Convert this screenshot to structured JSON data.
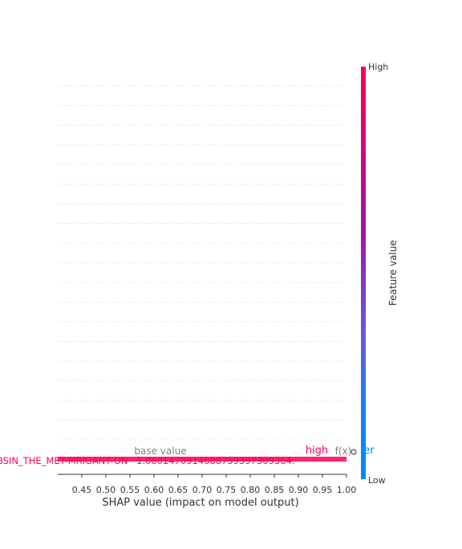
{
  "chart_data": {
    "type": "scatter",
    "title": "",
    "xlabel": "SHAP value (impact on model output)",
    "ylabel": "",
    "xlim": [
      0.4,
      1.0
    ],
    "x_ticks": [
      "0.45",
      "0.50",
      "0.55",
      "0.60",
      "0.65",
      "0.70",
      "0.75",
      "0.80",
      "0.85",
      "0.90",
      "0.95",
      "1.00"
    ],
    "x_tick_values": [
      0.45,
      0.5,
      0.55,
      0.6,
      0.65,
      0.7,
      0.75,
      0.8,
      0.85,
      0.9,
      0.95,
      1.0
    ],
    "row_count": 20,
    "grid": "dotted horizontal row guides",
    "colorbar": {
      "label": "Feature value",
      "high_label": "High",
      "low_label": "Low",
      "colors": [
        "#ff0052",
        "#a80fa4",
        "#6a5ad6",
        "#008bfb"
      ]
    },
    "annotations": {
      "base_value": "base value",
      "fx": "f(x)",
      "higher": "high",
      "lower": "er",
      "value_text": "1.0601470914088759397309364.",
      "feature_text": "BSIN_THE_MET-MRIGANT-ON"
    },
    "colors": {
      "positive": "#ff0052",
      "negative": "#008bfb",
      "axis": "#333333",
      "gray_text": "#808080"
    }
  }
}
